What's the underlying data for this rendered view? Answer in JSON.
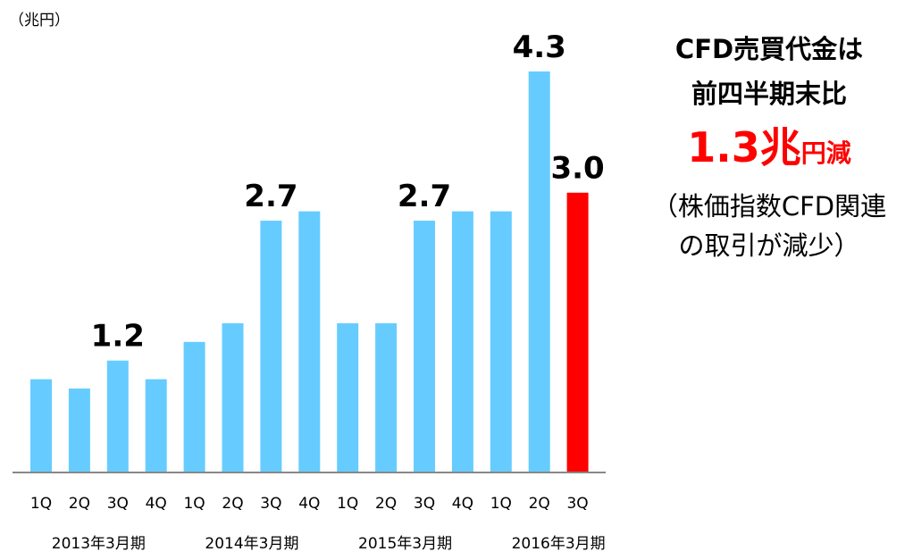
{
  "chart_data": {
    "type": "bar",
    "unit_label": "（兆円）",
    "categories": [
      "1Q",
      "2Q",
      "3Q",
      "4Q",
      "1Q",
      "2Q",
      "3Q",
      "4Q",
      "1Q",
      "2Q",
      "3Q",
      "4Q",
      "1Q",
      "2Q",
      "3Q"
    ],
    "groups": [
      {
        "label": "2013年3月期",
        "count": 4
      },
      {
        "label": "2014年3月期",
        "count": 4
      },
      {
        "label": "2015年3月期",
        "count": 4
      },
      {
        "label": "2016年3月期",
        "count": 3
      }
    ],
    "values": [
      1.0,
      0.9,
      1.2,
      1.0,
      1.4,
      1.6,
      2.7,
      2.8,
      1.6,
      1.6,
      2.7,
      2.8,
      2.8,
      4.3,
      3.0
    ],
    "data_labels": [
      {
        "index": 2,
        "text": "1.2"
      },
      {
        "index": 6,
        "text": "2.7"
      },
      {
        "index": 10,
        "text": "2.7"
      },
      {
        "index": 13,
        "text": "4.3"
      },
      {
        "index": 14,
        "text": "3.0"
      }
    ],
    "ylim": [
      0,
      4.3
    ],
    "colors": {
      "default": "#66ccff",
      "highlight": "#ff0000",
      "axis": "#888888"
    },
    "highlight_index": 14
  },
  "callout": {
    "line1": "CFD売買代金は",
    "line2": "前四半期末比",
    "amount": "1.3兆",
    "amount_suffix": "円減",
    "note_line1": "（株価指数CFD関連",
    "note_line2": "の取引が減少）"
  }
}
